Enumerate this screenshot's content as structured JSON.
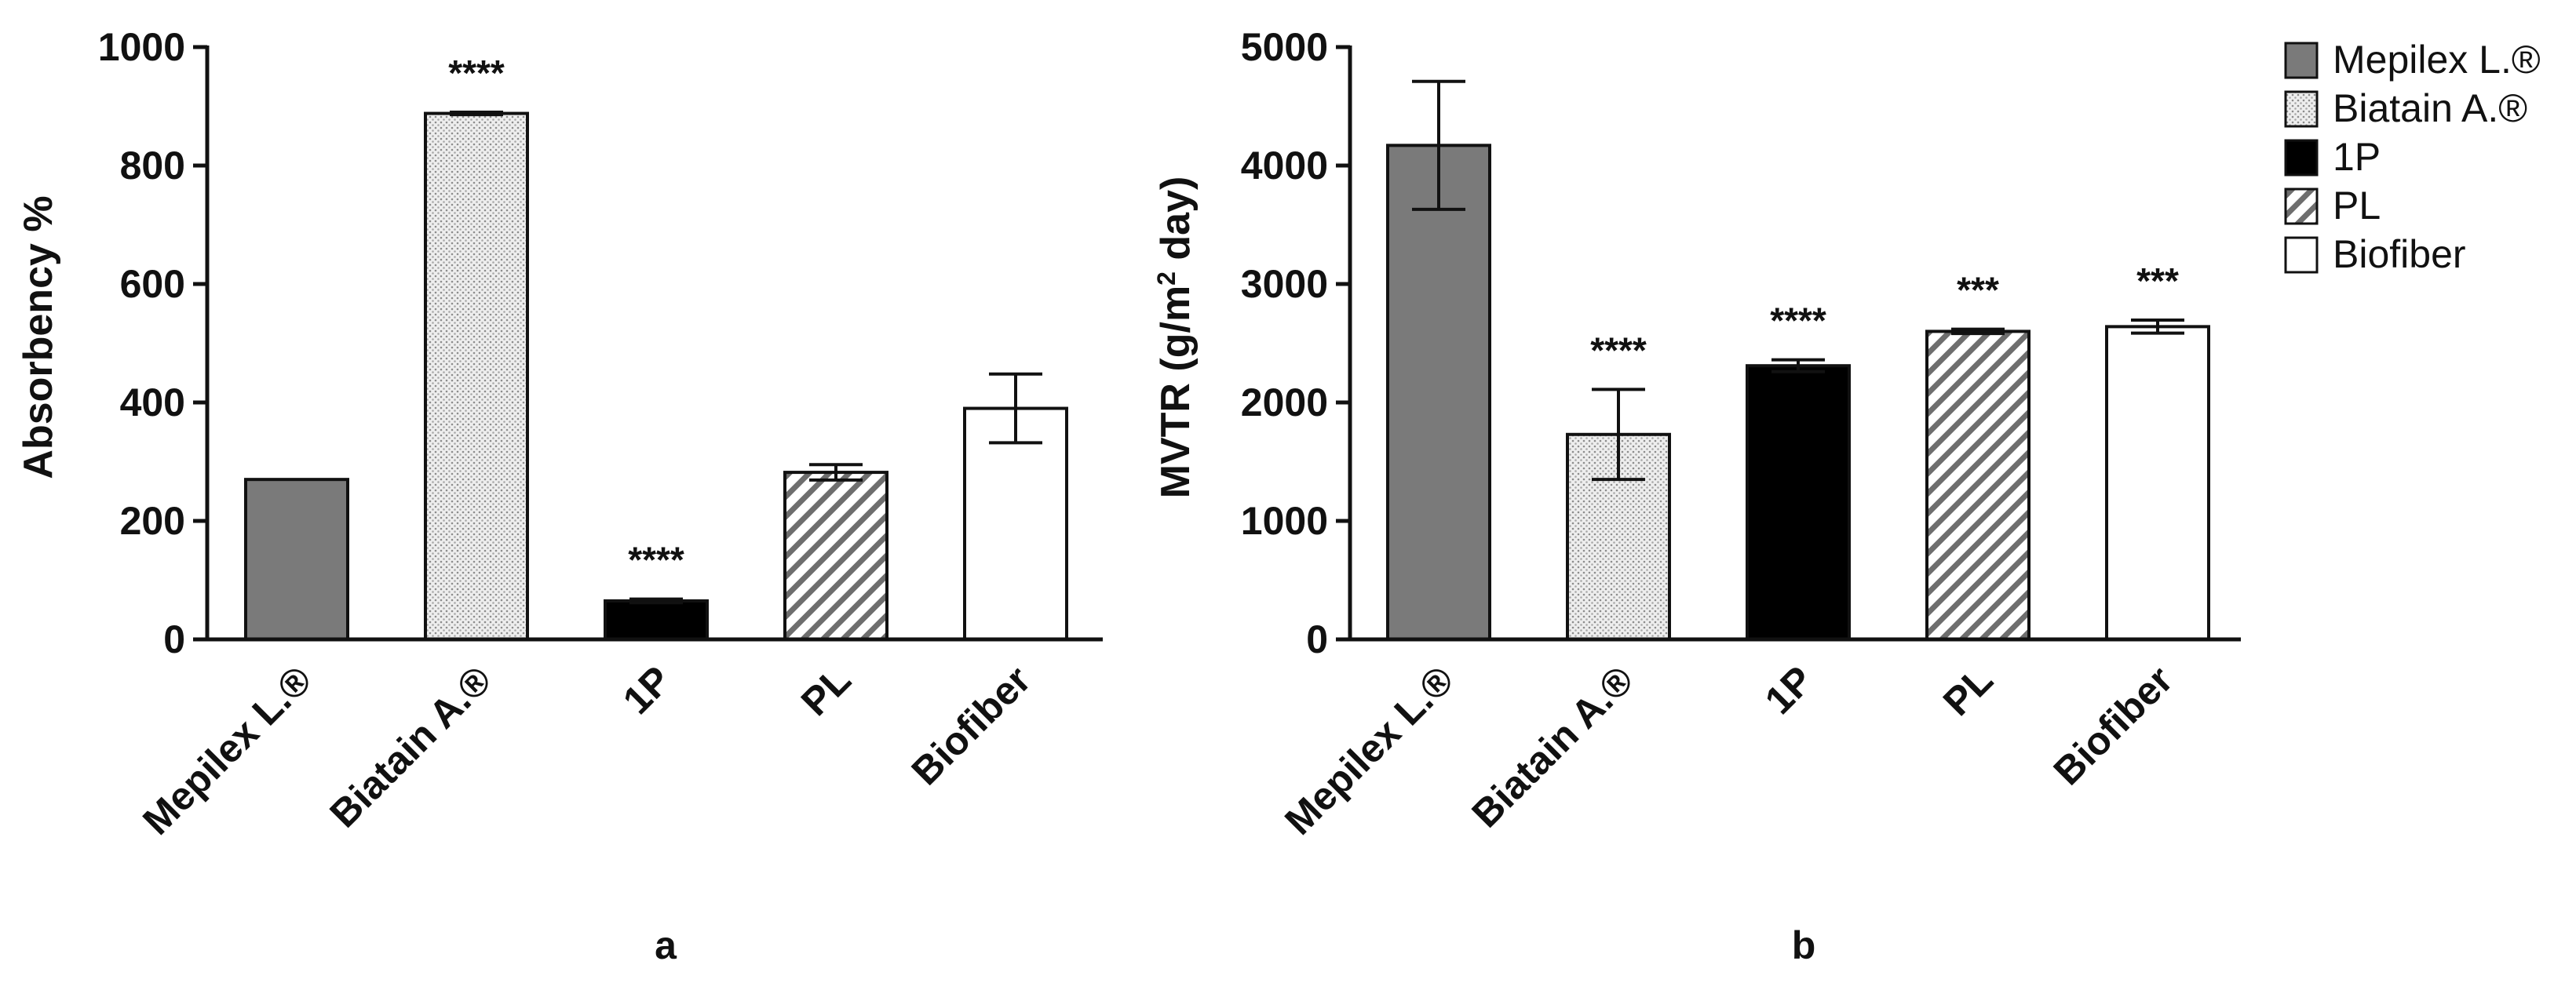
{
  "chart_data": [
    {
      "type": "bar",
      "panel_label": "a",
      "ylabel": "Absorbency %",
      "ylim": [
        0,
        1000
      ],
      "yticks": [
        0,
        200,
        400,
        600,
        800,
        1000
      ],
      "categories": [
        "Mepilex L.®",
        "Biatain A.®",
        "1P",
        "PL",
        "Biofiber"
      ],
      "values": [
        270,
        888,
        65,
        282,
        390
      ],
      "errors": [
        0,
        2,
        3,
        13,
        58
      ],
      "significance": [
        "",
        "****",
        "****",
        "",
        ""
      ]
    },
    {
      "type": "bar",
      "panel_label": "b",
      "ylabel_main": "MVTR (g/m",
      "ylabel_sup": "2",
      "ylabel_tail": " day)",
      "ylim": [
        0,
        5000
      ],
      "yticks": [
        0,
        1000,
        2000,
        3000,
        4000,
        5000
      ],
      "categories": [
        "Mepilex L.®",
        "Biatain A.®",
        "1P",
        "PL",
        "Biofiber"
      ],
      "values": [
        4170,
        1730,
        2310,
        2600,
        2640
      ],
      "errors": [
        540,
        380,
        50,
        18,
        55
      ],
      "significance": [
        "",
        "****",
        "****",
        "***",
        "***"
      ]
    }
  ],
  "legend": {
    "position": "top-right",
    "items": [
      {
        "label": "Mepilex L.®",
        "pattern": "solid-gray"
      },
      {
        "label": "Biatain A.®",
        "pattern": "dotted"
      },
      {
        "label": "1P",
        "pattern": "solid-black"
      },
      {
        "label": "PL",
        "pattern": "hatched"
      },
      {
        "label": "Biofiber",
        "pattern": "white"
      }
    ]
  },
  "colors": {
    "mepilex": "#7a7a7a",
    "biatain": "#e4e4e4",
    "onep": "#000000",
    "pl_hatch": "#6e6e6e",
    "biofiber": "#ffffff",
    "axis": "#111111"
  }
}
